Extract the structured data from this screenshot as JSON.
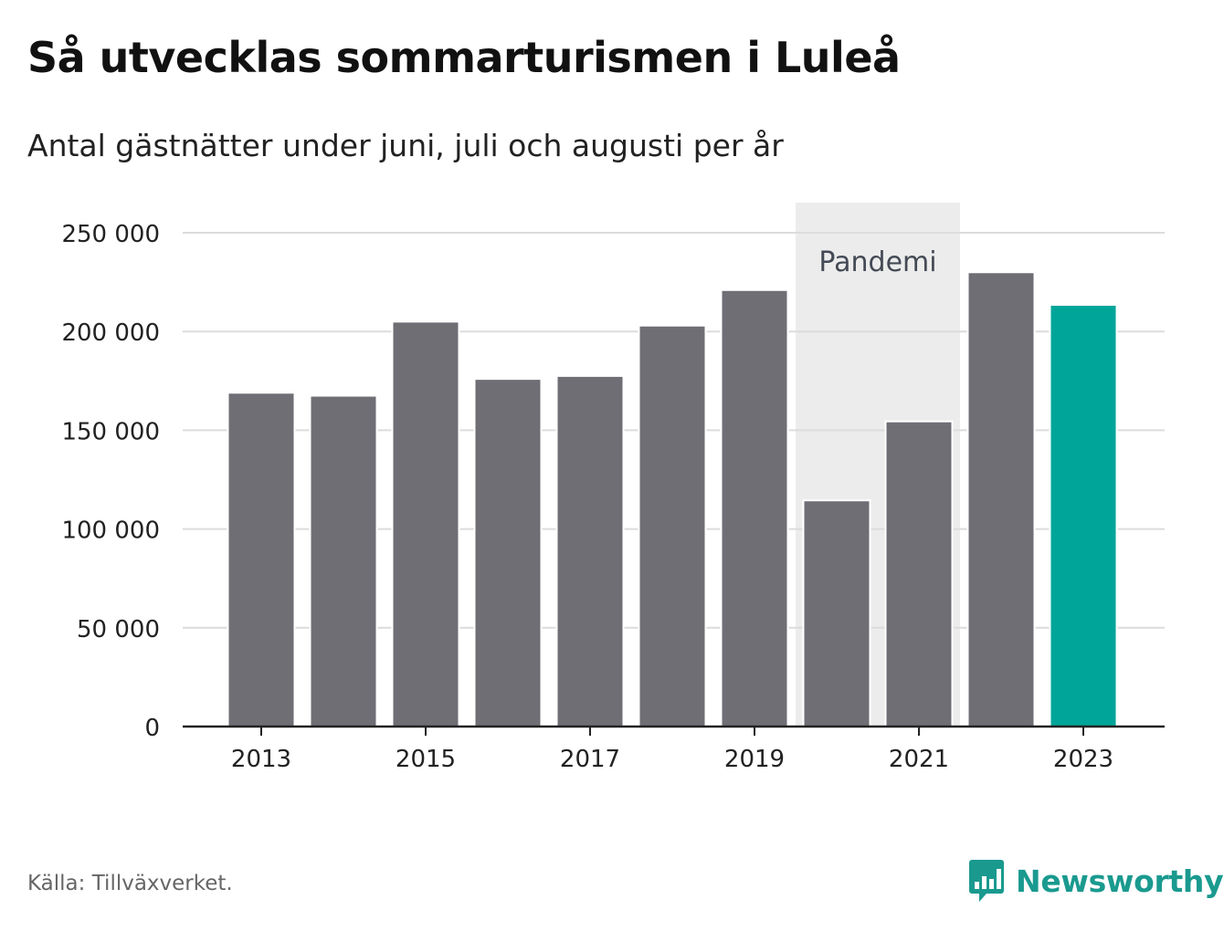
{
  "title": "Så utvecklas sommarturismen i Luleå",
  "subtitle": "Antal gästnätter under juni, juli och augusti per år",
  "source": "Källa: Tillväxverket.",
  "brand": {
    "name": "Newsworthy",
    "icon": "bar-chart-speech-bubble-icon",
    "color": "#1a9a8f"
  },
  "colors": {
    "bar": "#6f6e75",
    "highlight": "#00a59a",
    "band": "#ececec",
    "grid": "#dcdcdc",
    "axis": "#222222"
  },
  "chart_data": {
    "type": "bar",
    "title": "Så utvecklas sommarturismen i Luleå",
    "subtitle": "Antal gästnätter under juni, juli och augusti per år",
    "categories": [
      "2013",
      "2014",
      "2015",
      "2016",
      "2017",
      "2018",
      "2019",
      "2020",
      "2021",
      "2022",
      "2023"
    ],
    "values": [
      169000,
      167500,
      205000,
      176000,
      177500,
      203000,
      221000,
      114500,
      154500,
      230000,
      213500
    ],
    "highlight_category": "2023",
    "x_tick_labels": [
      "2013",
      "2015",
      "2017",
      "2019",
      "2021",
      "2023"
    ],
    "y_ticks": [
      0,
      50000,
      100000,
      150000,
      200000,
      250000
    ],
    "y_tick_labels": [
      "0",
      "50 000",
      "100 000",
      "150 000",
      "200 000",
      "250 000"
    ],
    "ylim": [
      0,
      265000
    ],
    "grid": true,
    "annotation": {
      "label": "Pandemi",
      "from": "2020",
      "to": "2021"
    }
  }
}
